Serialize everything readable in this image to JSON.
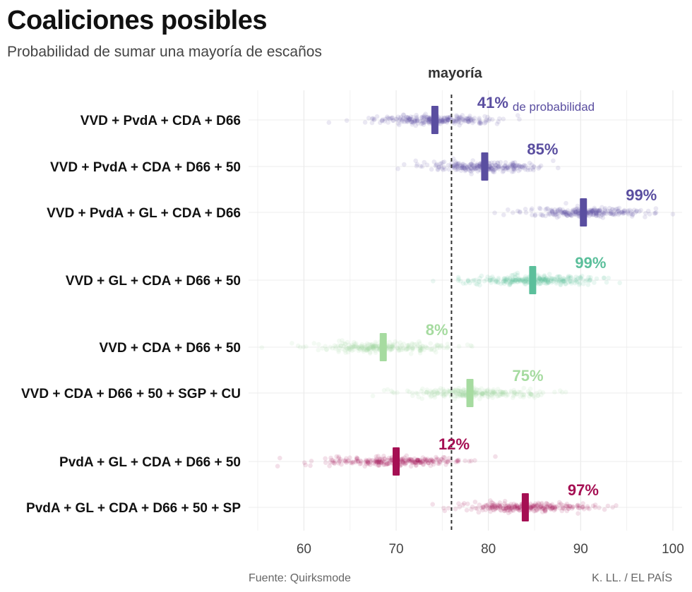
{
  "header": {
    "title": "Coaliciones posibles",
    "subtitle": "Probabilidad de sumar una mayoría de escaños"
  },
  "footer": {
    "source": "Fuente: Quirksmode",
    "credit": "K. LL. / EL PAÍS"
  },
  "chart_data": {
    "type": "scatter",
    "title": "Coaliciones posibles",
    "subtitle": "Probabilidad de sumar una mayoría de escaños",
    "xlabel": "",
    "ylabel": "",
    "xlim": [
      54,
      101
    ],
    "xticks": [
      60,
      70,
      80,
      90,
      100
    ],
    "grid": true,
    "reference_line": {
      "value": 76,
      "label": "mayoría"
    },
    "probability_suffix": "de probabilidad",
    "coalitions": [
      {
        "name": "VVD + PvdA + CDA + D66",
        "median": 74.2,
        "spread": 3.3,
        "min": 62.5,
        "max": 85.5,
        "probability": "41%",
        "color": "#5a4ea0",
        "group": 1
      },
      {
        "name": "VVD + PvdA + CDA + D66 + 50",
        "median": 79.6,
        "spread": 3.3,
        "min": 62.0,
        "max": 93.0,
        "probability": "85%",
        "color": "#5a4ea0",
        "group": 1
      },
      {
        "name": "VVD + PvdA + GL + CDA + D66",
        "median": 90.3,
        "spread": 3.3,
        "min": 73.5,
        "max": 100.0,
        "probability": "99%",
        "color": "#5a4ea0",
        "group": 1
      },
      {
        "name": "VVD + GL + CDA + D66 + 50",
        "median": 84.8,
        "spread": 3.6,
        "min": 70.0,
        "max": 100.0,
        "probability": "99%",
        "color": "#5bbf9b",
        "group": 2
      },
      {
        "name": "VVD + CDA + D66 + 50",
        "median": 68.6,
        "spread": 3.5,
        "min": 55.0,
        "max": 81.5,
        "probability": "8%",
        "color": "#a6dba0",
        "group": 3
      },
      {
        "name": "VVD + CDA + D66 + 50 + SGP + CU",
        "median": 78.0,
        "spread": 3.5,
        "min": 66.0,
        "max": 90.5,
        "probability": "75%",
        "color": "#a6dba0",
        "group": 3
      },
      {
        "name": "PvdA + GL + CDA + D66 + 50",
        "median": 70.0,
        "spread": 3.8,
        "min": 54.5,
        "max": 84.5,
        "probability": "12%",
        "color": "#a50f53",
        "group": 4
      },
      {
        "name": "PvdA + GL + CDA + D66 + 50 + SP",
        "median": 84.0,
        "spread": 3.6,
        "min": 72.5,
        "max": 99.0,
        "probability": "97%",
        "color": "#a50f53",
        "group": 4
      }
    ]
  }
}
